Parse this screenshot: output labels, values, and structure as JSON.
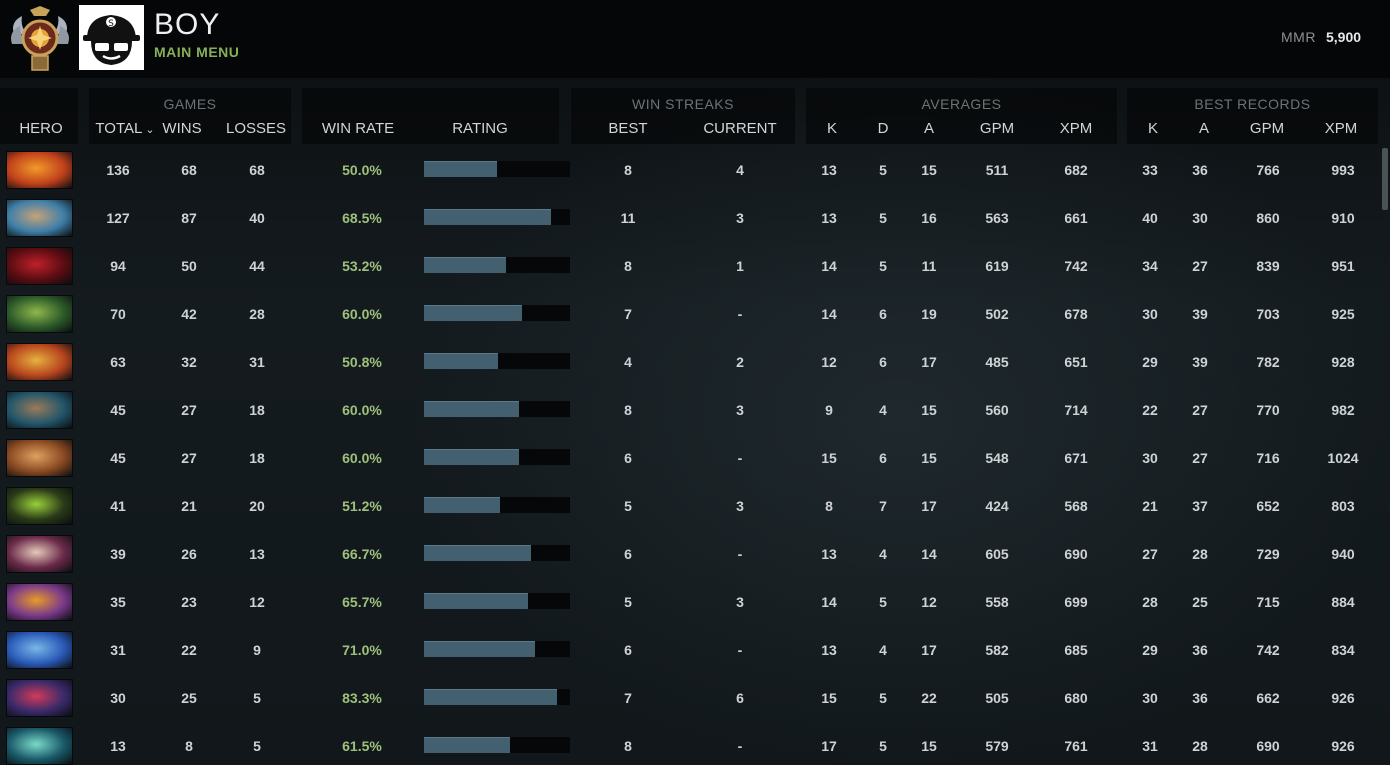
{
  "header": {
    "profile_name": "BOY",
    "profile_subtitle": "MAIN MENU",
    "mmr_label": "MMR",
    "mmr_value": "5,900"
  },
  "groups": {
    "games": "GAMES",
    "win_streaks": "WIN STREAKS",
    "averages": "AVERAGES",
    "best_records": "BEST RECORDS"
  },
  "columns": {
    "hero": "HERO",
    "total": "TOTAL",
    "wins": "WINS",
    "losses": "LOSSES",
    "win_rate": "WIN RATE",
    "rating": "RATING",
    "best": "BEST",
    "current": "CURRENT",
    "avg_k": "K",
    "avg_d": "D",
    "avg_a": "A",
    "avg_gpm": "GPM",
    "avg_xpm": "XPM",
    "best_k": "K",
    "best_a": "A",
    "best_gpm": "GPM",
    "best_xpm": "XPM"
  },
  "colors": {
    "win_rate_text": "#9fc07c",
    "rating_bar": "#436070",
    "subtitle_green": "#86b15a"
  },
  "rows": [
    {
      "total": "136",
      "wins": "68",
      "losses": "68",
      "win_rate": "50.0%",
      "rating": 0.5,
      "best": "8",
      "current": "4",
      "k": "13",
      "d": "5",
      "a": "15",
      "gpm": "511",
      "xpm": "682",
      "bk": "33",
      "ba": "36",
      "bgpm": "766",
      "bxpm": "993",
      "hero_color": "#c2421c",
      "hero_color2": "#f19a2a"
    },
    {
      "total": "127",
      "wins": "87",
      "losses": "40",
      "win_rate": "68.5%",
      "rating": 0.87,
      "best": "11",
      "current": "3",
      "k": "13",
      "d": "5",
      "a": "16",
      "gpm": "563",
      "xpm": "661",
      "bk": "40",
      "ba": "30",
      "bgpm": "860",
      "bxpm": "910",
      "hero_color": "#3f7fa8",
      "hero_color2": "#c6a27a"
    },
    {
      "total": "94",
      "wins": "50",
      "losses": "44",
      "win_rate": "53.2%",
      "rating": 0.56,
      "best": "8",
      "current": "1",
      "k": "14",
      "d": "5",
      "a": "11",
      "gpm": "619",
      "xpm": "742",
      "bk": "34",
      "ba": "27",
      "bgpm": "839",
      "bxpm": "951",
      "hero_color": "#5a0d12",
      "hero_color2": "#c0202a"
    },
    {
      "total": "70",
      "wins": "42",
      "losses": "28",
      "win_rate": "60.0%",
      "rating": 0.67,
      "best": "7",
      "current": "-",
      "k": "14",
      "d": "6",
      "a": "19",
      "gpm": "502",
      "xpm": "678",
      "bk": "30",
      "ba": "39",
      "bgpm": "703",
      "bxpm": "925",
      "hero_color": "#2d5a2a",
      "hero_color2": "#8fb84a"
    },
    {
      "total": "63",
      "wins": "32",
      "losses": "31",
      "win_rate": "50.8%",
      "rating": 0.51,
      "best": "4",
      "current": "2",
      "k": "12",
      "d": "6",
      "a": "17",
      "gpm": "485",
      "xpm": "651",
      "bk": "29",
      "ba": "39",
      "bgpm": "782",
      "bxpm": "928",
      "hero_color": "#b8461e",
      "hero_color2": "#e7b140"
    },
    {
      "total": "45",
      "wins": "27",
      "losses": "18",
      "win_rate": "60.0%",
      "rating": 0.65,
      "best": "8",
      "current": "3",
      "k": "9",
      "d": "4",
      "a": "15",
      "gpm": "560",
      "xpm": "714",
      "bk": "22",
      "ba": "27",
      "bgpm": "770",
      "bxpm": "982",
      "hero_color": "#23566a",
      "hero_color2": "#9b7a5a"
    },
    {
      "total": "45",
      "wins": "27",
      "losses": "18",
      "win_rate": "60.0%",
      "rating": 0.65,
      "best": "6",
      "current": "-",
      "k": "15",
      "d": "6",
      "a": "15",
      "gpm": "548",
      "xpm": "671",
      "bk": "30",
      "ba": "27",
      "bgpm": "716",
      "bxpm": "1024",
      "hero_color": "#8a4a22",
      "hero_color2": "#e0a060"
    },
    {
      "total": "41",
      "wins": "21",
      "losses": "20",
      "win_rate": "51.2%",
      "rating": 0.52,
      "best": "5",
      "current": "3",
      "k": "8",
      "d": "7",
      "a": "17",
      "gpm": "424",
      "xpm": "568",
      "bk": "21",
      "ba": "37",
      "bgpm": "652",
      "bxpm": "803",
      "hero_color": "#2a3a18",
      "hero_color2": "#9ad03a"
    },
    {
      "total": "39",
      "wins": "26",
      "losses": "13",
      "win_rate": "66.7%",
      "rating": 0.73,
      "best": "6",
      "current": "-",
      "k": "13",
      "d": "4",
      "a": "14",
      "gpm": "605",
      "xpm": "690",
      "bk": "27",
      "ba": "28",
      "bgpm": "729",
      "bxpm": "940",
      "hero_color": "#6a2a4a",
      "hero_color2": "#e6c9b8"
    },
    {
      "total": "35",
      "wins": "23",
      "losses": "12",
      "win_rate": "65.7%",
      "rating": 0.71,
      "best": "5",
      "current": "3",
      "k": "14",
      "d": "5",
      "a": "12",
      "gpm": "558",
      "xpm": "699",
      "bk": "28",
      "ba": "25",
      "bgpm": "715",
      "bxpm": "884",
      "hero_color": "#7a3a8a",
      "hero_color2": "#e89a2a"
    },
    {
      "total": "31",
      "wins": "22",
      "losses": "9",
      "win_rate": "71.0%",
      "rating": 0.76,
      "best": "6",
      "current": "-",
      "k": "13",
      "d": "4",
      "a": "17",
      "gpm": "582",
      "xpm": "685",
      "bk": "29",
      "ba": "36",
      "bgpm": "742",
      "bxpm": "834",
      "hero_color": "#2a5ab8",
      "hero_color2": "#7ab8e8"
    },
    {
      "total": "30",
      "wins": "25",
      "losses": "5",
      "win_rate": "83.3%",
      "rating": 0.91,
      "best": "7",
      "current": "6",
      "k": "15",
      "d": "5",
      "a": "22",
      "gpm": "505",
      "xpm": "680",
      "bk": "30",
      "ba": "36",
      "bgpm": "662",
      "bxpm": "926",
      "hero_color": "#3a2a6a",
      "hero_color2": "#d23a5a"
    },
    {
      "total": "13",
      "wins": "8",
      "losses": "5",
      "win_rate": "61.5%",
      "rating": 0.59,
      "best": "8",
      "current": "-",
      "k": "17",
      "d": "5",
      "a": "15",
      "gpm": "579",
      "xpm": "761",
      "bk": "31",
      "ba": "28",
      "bgpm": "690",
      "bxpm": "926",
      "hero_color": "#1a5a6a",
      "hero_color2": "#7adac8"
    }
  ]
}
